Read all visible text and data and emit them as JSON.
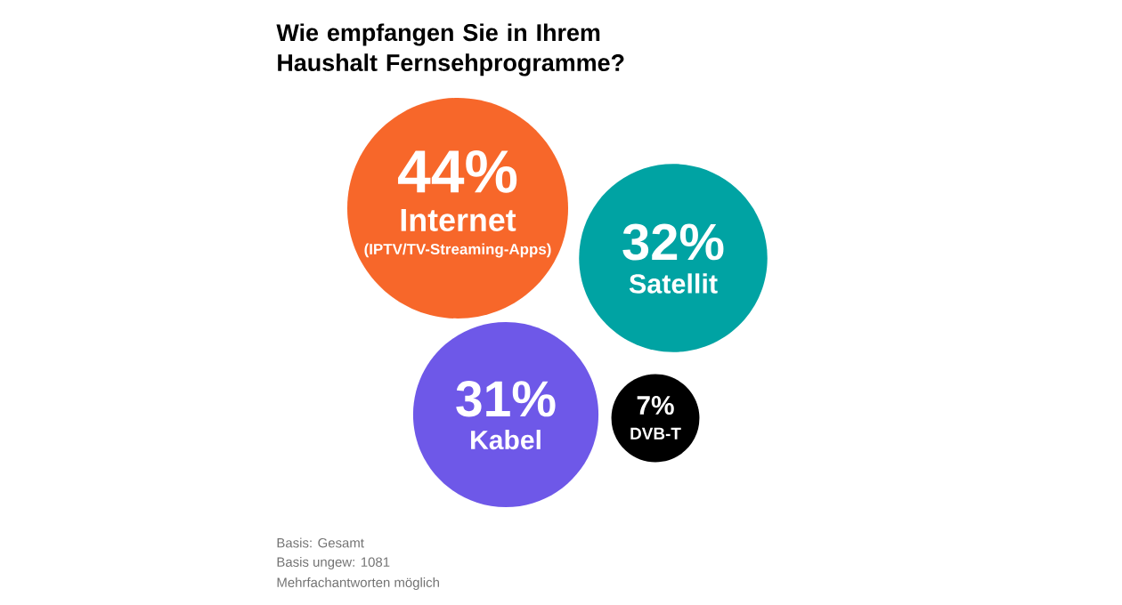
{
  "chart_data": {
    "type": "other",
    "title": "Wie empfangen Sie in Ihrem Haushalt Fernsehprogramme?",
    "categories": [
      "Internet",
      "Satellit",
      "Kabel",
      "DVB-T"
    ],
    "values": [
      44,
      32,
      31,
      7
    ],
    "value_labels": [
      "44%",
      "32%",
      "31%",
      "7%"
    ],
    "colors": [
      "#f7672a",
      "#00a3a3",
      "#6e58e8",
      "#000000"
    ],
    "annotations": [
      {
        "text": "(IPTV/TV-Streaming-Apps)",
        "x": "Internet"
      },
      "Basis: Gesamt",
      "Basis ungew: 1081",
      "Mehrfachantworten möglich"
    ]
  }
}
